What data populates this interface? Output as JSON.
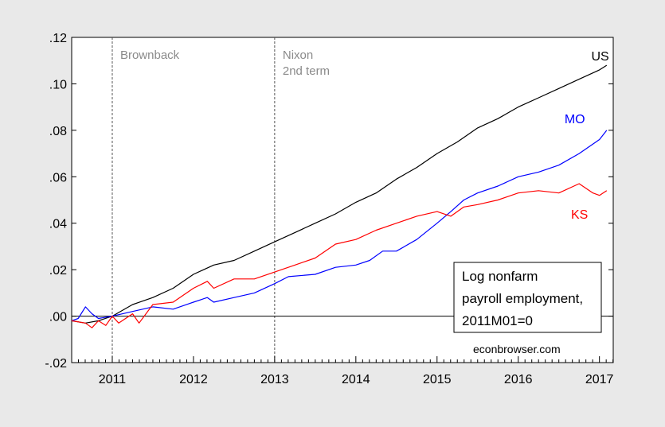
{
  "chart_data": {
    "type": "line",
    "ylim": [
      -0.02,
      0.12
    ],
    "xlim": [
      2010.5,
      2017.17
    ],
    "y_ticks": [
      {
        "value": -0.02,
        "label": "-.02"
      },
      {
        "value": 0.0,
        "label": ".00"
      },
      {
        "value": 0.02,
        "label": ".02"
      },
      {
        "value": 0.04,
        "label": ".04"
      },
      {
        "value": 0.06,
        "label": ".06"
      },
      {
        "value": 0.08,
        "label": ".08"
      },
      {
        "value": 0.1,
        "label": ".10"
      },
      {
        "value": 0.12,
        "label": ".12"
      }
    ],
    "x_ticks": [
      {
        "value": 2011,
        "label": "2011"
      },
      {
        "value": 2012,
        "label": "2012"
      },
      {
        "value": 2013,
        "label": "2013"
      },
      {
        "value": 2014,
        "label": "2014"
      },
      {
        "value": 2015,
        "label": "2015"
      },
      {
        "value": 2016,
        "label": "2016"
      },
      {
        "value": 2017,
        "label": "2017"
      }
    ],
    "zero_line": 0.0,
    "grid": false,
    "vlines": [
      {
        "x": 2011.0,
        "label_lines": [
          "Brownback"
        ]
      },
      {
        "x": 2013.0,
        "label_lines": [
          "Nixon",
          "2nd term"
        ]
      }
    ],
    "series": [
      {
        "name": "US",
        "color": "#000000",
        "label_anchor": [
          2016.9,
          0.11
        ],
        "points": [
          [
            2010.5,
            -0.002
          ],
          [
            2010.67,
            -0.003
          ],
          [
            2010.83,
            -0.002
          ],
          [
            2011.0,
            0.0
          ],
          [
            2011.25,
            0.005
          ],
          [
            2011.5,
            0.008
          ],
          [
            2011.75,
            0.012
          ],
          [
            2012.0,
            0.018
          ],
          [
            2012.25,
            0.022
          ],
          [
            2012.5,
            0.024
          ],
          [
            2012.75,
            0.028
          ],
          [
            2013.0,
            0.032
          ],
          [
            2013.25,
            0.036
          ],
          [
            2013.5,
            0.04
          ],
          [
            2013.75,
            0.044
          ],
          [
            2014.0,
            0.049
          ],
          [
            2014.25,
            0.053
          ],
          [
            2014.5,
            0.059
          ],
          [
            2014.75,
            0.064
          ],
          [
            2015.0,
            0.07
          ],
          [
            2015.25,
            0.075
          ],
          [
            2015.5,
            0.081
          ],
          [
            2015.75,
            0.085
          ],
          [
            2016.0,
            0.09
          ],
          [
            2016.25,
            0.094
          ],
          [
            2016.5,
            0.098
          ],
          [
            2016.75,
            0.102
          ],
          [
            2017.0,
            0.106
          ],
          [
            2017.09,
            0.108
          ]
        ]
      },
      {
        "name": "MO",
        "color": "#0000ff",
        "label_anchor": [
          2016.57,
          0.083
        ],
        "points": [
          [
            2010.5,
            -0.002
          ],
          [
            2010.58,
            -0.001
          ],
          [
            2010.67,
            0.004
          ],
          [
            2010.75,
            0.001
          ],
          [
            2010.83,
            -0.001
          ],
          [
            2011.0,
            0.0
          ],
          [
            2011.25,
            0.002
          ],
          [
            2011.5,
            0.004
          ],
          [
            2011.75,
            0.003
          ],
          [
            2012.0,
            0.006
          ],
          [
            2012.17,
            0.008
          ],
          [
            2012.25,
            0.006
          ],
          [
            2012.5,
            0.008
          ],
          [
            2012.75,
            0.01
          ],
          [
            2013.0,
            0.014
          ],
          [
            2013.17,
            0.017
          ],
          [
            2013.5,
            0.018
          ],
          [
            2013.75,
            0.021
          ],
          [
            2014.0,
            0.022
          ],
          [
            2014.17,
            0.024
          ],
          [
            2014.33,
            0.028
          ],
          [
            2014.5,
            0.028
          ],
          [
            2014.75,
            0.033
          ],
          [
            2015.0,
            0.04
          ],
          [
            2015.17,
            0.045
          ],
          [
            2015.33,
            0.05
          ],
          [
            2015.5,
            0.053
          ],
          [
            2015.75,
            0.056
          ],
          [
            2016.0,
            0.06
          ],
          [
            2016.25,
            0.062
          ],
          [
            2016.5,
            0.065
          ],
          [
            2016.75,
            0.07
          ],
          [
            2017.0,
            0.076
          ],
          [
            2017.09,
            0.08
          ]
        ]
      },
      {
        "name": "KS",
        "color": "#ff0000",
        "label_anchor": [
          2016.65,
          0.042
        ],
        "points": [
          [
            2010.5,
            -0.002
          ],
          [
            2010.67,
            -0.003
          ],
          [
            2010.75,
            -0.005
          ],
          [
            2010.83,
            -0.002
          ],
          [
            2010.92,
            -0.004
          ],
          [
            2011.0,
            0.0
          ],
          [
            2011.08,
            -0.003
          ],
          [
            2011.25,
            0.001
          ],
          [
            2011.33,
            -0.003
          ],
          [
            2011.5,
            0.005
          ],
          [
            2011.75,
            0.006
          ],
          [
            2012.0,
            0.012
          ],
          [
            2012.17,
            0.015
          ],
          [
            2012.25,
            0.012
          ],
          [
            2012.5,
            0.016
          ],
          [
            2012.75,
            0.016
          ],
          [
            2013.0,
            0.019
          ],
          [
            2013.25,
            0.022
          ],
          [
            2013.5,
            0.025
          ],
          [
            2013.75,
            0.031
          ],
          [
            2014.0,
            0.033
          ],
          [
            2014.25,
            0.037
          ],
          [
            2014.5,
            0.04
          ],
          [
            2014.75,
            0.043
          ],
          [
            2015.0,
            0.045
          ],
          [
            2015.17,
            0.043
          ],
          [
            2015.33,
            0.047
          ],
          [
            2015.5,
            0.048
          ],
          [
            2015.75,
            0.05
          ],
          [
            2016.0,
            0.053
          ],
          [
            2016.25,
            0.054
          ],
          [
            2016.5,
            0.053
          ],
          [
            2016.75,
            0.057
          ],
          [
            2016.92,
            0.053
          ],
          [
            2017.0,
            0.052
          ],
          [
            2017.09,
            0.054
          ]
        ]
      }
    ]
  },
  "legend_box": {
    "lines": [
      "Log nonfarm",
      "payroll employment,",
      "2011M01=0"
    ]
  },
  "credit": "econbrowser.com"
}
